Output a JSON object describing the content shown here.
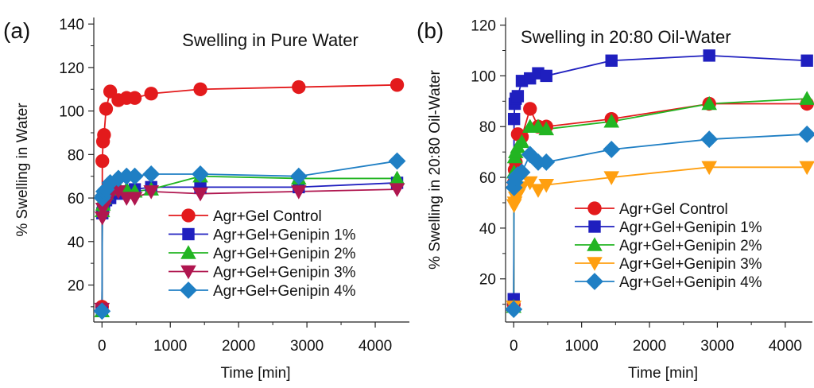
{
  "chart_data": [
    {
      "type": "line",
      "panel_label": "(a)",
      "title": "Swelling in Pure Water",
      "xlabel": "Time [min]",
      "ylabel": "% Swelling in Water",
      "xlim": [
        -120,
        4500
      ],
      "ylim": [
        3,
        143
      ],
      "xticks": [
        0,
        1000,
        2000,
        3000,
        4000
      ],
      "yticks": [
        20,
        40,
        60,
        80,
        100,
        120,
        140
      ],
      "grid": false,
      "legend_position": "bottom-right",
      "series": [
        {
          "name": "Agr+Gel Control",
          "color": "#e31a1c",
          "marker": "circle",
          "x": [
            0,
            5,
            15,
            30,
            60,
            120,
            240,
            360,
            480,
            720,
            1440,
            2880,
            4320
          ],
          "y": [
            10,
            77,
            86,
            89,
            101,
            109,
            105,
            106,
            106,
            108,
            110,
            111,
            112
          ]
        },
        {
          "name": "Agr+Gel+Genipin 1%",
          "color": "#1f1fbf",
          "marker": "square",
          "x": [
            0,
            5,
            15,
            30,
            60,
            120,
            240,
            360,
            480,
            720,
            1440,
            2880,
            4320
          ],
          "y": [
            9,
            53,
            55,
            57,
            59,
            60,
            62,
            63,
            64,
            65,
            65,
            65,
            67
          ]
        },
        {
          "name": "Agr+Gel+Genipin 2%",
          "color": "#22b522",
          "marker": "triangle-up",
          "x": [
            0,
            5,
            15,
            30,
            60,
            120,
            240,
            360,
            480,
            720,
            1440,
            2880,
            4320
          ],
          "y": [
            8,
            54,
            57,
            60,
            62,
            64,
            65,
            64,
            63,
            64,
            70,
            69,
            69
          ]
        },
        {
          "name": "Agr+Gel+Genipin 3%",
          "color": "#b0164f",
          "marker": "triangle-down",
          "x": [
            0,
            5,
            15,
            30,
            60,
            120,
            240,
            360,
            480,
            720,
            1440,
            2880,
            4320
          ],
          "y": [
            9,
            51,
            55,
            57,
            60,
            61,
            63,
            60,
            60,
            63,
            62,
            63,
            64
          ]
        },
        {
          "name": "Agr+Gel+Genipin 4%",
          "color": "#1f7fc4",
          "marker": "diamond",
          "x": [
            0,
            5,
            15,
            30,
            60,
            120,
            240,
            360,
            480,
            720,
            1440,
            2880,
            4320
          ],
          "y": [
            8,
            60,
            61,
            63,
            64,
            67,
            69,
            70,
            70,
            71,
            71,
            70,
            77
          ]
        }
      ]
    },
    {
      "type": "line",
      "panel_label": "(b)",
      "title": "Swelling in 20:80 Oil-Water",
      "xlabel": "Time [min]",
      "ylabel": "% Swelling in 20:80 Oil-Water",
      "xlim": [
        -120,
        4400
      ],
      "ylim": [
        3,
        123
      ],
      "xticks": [
        0,
        1000,
        2000,
        3000,
        4000
      ],
      "yticks": [
        20,
        40,
        60,
        80,
        100,
        120
      ],
      "grid": false,
      "legend_position": "bottom-right",
      "series": [
        {
          "name": "Agr+Gel Control",
          "color": "#e31a1c",
          "marker": "circle",
          "x": [
            0,
            5,
            15,
            30,
            60,
            120,
            240,
            360,
            480,
            1440,
            2880,
            4320
          ],
          "y": [
            10,
            58,
            63,
            66,
            77,
            76,
            87,
            80,
            80,
            83,
            89,
            89
          ]
        },
        {
          "name": "Agr+Gel+Genipin 1%",
          "color": "#1f1fbf",
          "marker": "square",
          "x": [
            0,
            5,
            15,
            30,
            60,
            120,
            240,
            360,
            480,
            1440,
            2880,
            4320
          ],
          "y": [
            12,
            83,
            89,
            91,
            92,
            98,
            99,
            101,
            100,
            106,
            108,
            106
          ]
        },
        {
          "name": "Agr+Gel+Genipin 2%",
          "color": "#22b522",
          "marker": "triangle-up",
          "x": [
            0,
            5,
            15,
            30,
            60,
            120,
            240,
            360,
            480,
            1440,
            2880,
            4320
          ],
          "y": [
            9,
            62,
            68,
            70,
            72,
            74,
            80,
            80,
            79,
            82,
            89,
            91
          ]
        },
        {
          "name": "Agr+Gel+Genipin 3%",
          "color": "#ff9f10",
          "marker": "triangle-down",
          "x": [
            0,
            5,
            15,
            30,
            60,
            120,
            240,
            360,
            480,
            1440,
            2880,
            4320
          ],
          "y": [
            9,
            49,
            50,
            52,
            53,
            56,
            58,
            55,
            57,
            60,
            64,
            64
          ]
        },
        {
          "name": "Agr+Gel+Genipin 4%",
          "color": "#1f7fc4",
          "marker": "diamond",
          "x": [
            0,
            5,
            15,
            30,
            60,
            120,
            240,
            360,
            480,
            1440,
            2880,
            4320
          ],
          "y": [
            8,
            56,
            58,
            60,
            61,
            62,
            69,
            66,
            66,
            71,
            75,
            77
          ]
        }
      ]
    }
  ]
}
